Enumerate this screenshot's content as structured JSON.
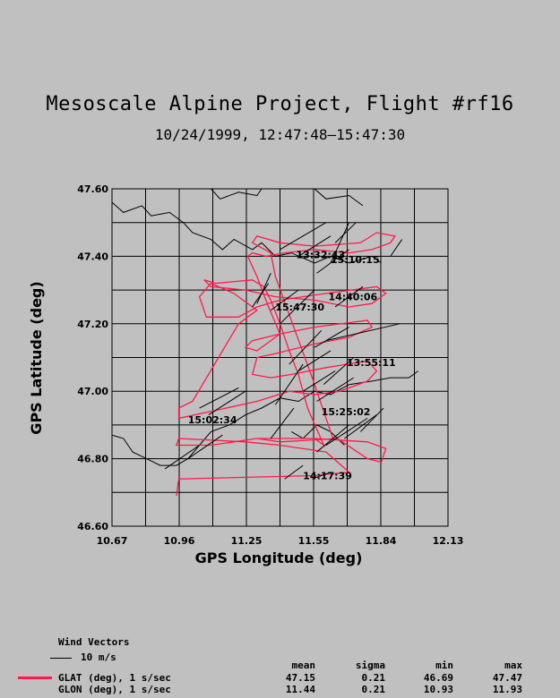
{
  "header": {
    "title": "Mesoscale Alpine Project, Flight #rf16",
    "subtitle": "10/24/1999, 12:47:48–15:47:30"
  },
  "chart_data": {
    "type": "line",
    "xlabel": "GPS Longitude (deg)",
    "ylabel": "GPS Latitude (deg)",
    "xlim": [
      10.67,
      12.13
    ],
    "ylim": [
      46.6,
      47.6
    ],
    "x_ticks": [
      "10.67",
      "10.96",
      "11.25",
      "11.55",
      "11.84",
      "12.13"
    ],
    "y_ticks": [
      "46.60",
      "46.80",
      "47.00",
      "47.20",
      "47.40",
      "47.60"
    ],
    "grid": true,
    "track_color": "#ff1a4a",
    "track": [
      [
        10.95,
        46.69
      ],
      [
        10.96,
        46.74
      ],
      [
        11.55,
        46.75
      ],
      [
        11.7,
        46.76
      ],
      [
        11.6,
        46.82
      ],
      [
        11.4,
        46.84
      ],
      [
        11.25,
        46.85
      ],
      [
        10.96,
        46.86
      ],
      [
        10.95,
        46.84
      ],
      [
        11.1,
        46.84
      ],
      [
        11.3,
        46.86
      ],
      [
        11.55,
        46.86
      ],
      [
        11.78,
        46.85
      ],
      [
        11.86,
        46.83
      ],
      [
        11.84,
        46.79
      ],
      [
        11.78,
        46.8
      ],
      [
        11.65,
        46.86
      ],
      [
        11.4,
        46.85
      ],
      [
        11.3,
        46.86
      ],
      [
        11.55,
        46.86
      ],
      [
        11.59,
        46.84
      ],
      [
        11.52,
        46.95
      ],
      [
        11.48,
        47.05
      ],
      [
        11.44,
        47.12
      ],
      [
        11.4,
        47.2
      ],
      [
        11.36,
        47.27
      ],
      [
        11.33,
        47.31
      ],
      [
        11.28,
        47.33
      ],
      [
        11.12,
        47.32
      ],
      [
        11.07,
        47.33
      ],
      [
        11.1,
        47.31
      ],
      [
        11.25,
        47.3
      ],
      [
        11.38,
        47.28
      ],
      [
        11.55,
        47.27
      ],
      [
        11.7,
        47.25
      ],
      [
        11.8,
        47.26
      ],
      [
        11.86,
        47.29
      ],
      [
        11.82,
        47.31
      ],
      [
        11.6,
        47.29
      ],
      [
        11.4,
        47.27
      ],
      [
        11.3,
        47.25
      ],
      [
        11.22,
        47.22
      ],
      [
        11.08,
        47.22
      ],
      [
        11.05,
        47.28
      ],
      [
        11.1,
        47.32
      ],
      [
        11.2,
        47.29
      ],
      [
        11.3,
        47.24
      ],
      [
        11.22,
        47.2
      ],
      [
        11.02,
        46.97
      ],
      [
        10.96,
        46.95
      ],
      [
        10.96,
        46.92
      ],
      [
        11.1,
        46.94
      ],
      [
        11.3,
        46.97
      ],
      [
        11.44,
        47.0
      ],
      [
        11.55,
        46.99
      ],
      [
        11.66,
        47.0
      ],
      [
        11.78,
        47.03
      ],
      [
        11.82,
        47.06
      ],
      [
        11.78,
        47.09
      ],
      [
        11.6,
        47.07
      ],
      [
        11.45,
        47.05
      ],
      [
        11.36,
        47.04
      ],
      [
        11.28,
        47.05
      ],
      [
        11.3,
        47.1
      ],
      [
        11.37,
        47.11
      ],
      [
        11.55,
        47.14
      ],
      [
        11.7,
        47.16
      ],
      [
        11.8,
        47.19
      ],
      [
        11.78,
        47.21
      ],
      [
        11.55,
        47.19
      ],
      [
        11.4,
        47.17
      ],
      [
        11.28,
        47.15
      ],
      [
        11.25,
        47.13
      ],
      [
        11.3,
        47.12
      ],
      [
        11.4,
        47.17
      ],
      [
        11.35,
        47.25
      ],
      [
        11.3,
        47.34
      ],
      [
        11.26,
        47.4
      ],
      [
        11.28,
        47.41
      ],
      [
        11.34,
        47.4
      ],
      [
        11.42,
        47.41
      ],
      [
        11.55,
        47.42
      ],
      [
        11.7,
        47.41
      ],
      [
        11.8,
        47.42
      ],
      [
        11.88,
        47.44
      ],
      [
        11.9,
        47.46
      ],
      [
        11.82,
        47.47
      ],
      [
        11.75,
        47.44
      ],
      [
        11.55,
        47.43
      ],
      [
        11.4,
        47.44
      ],
      [
        11.3,
        47.46
      ],
      [
        11.28,
        47.44
      ],
      [
        11.36,
        47.41
      ],
      [
        11.38,
        47.34
      ],
      [
        11.46,
        47.19
      ],
      [
        11.54,
        47.04
      ],
      [
        11.6,
        46.92
      ],
      [
        11.63,
        46.86
      ]
    ],
    "wind_vectors": [
      [
        11.09,
        46.93,
        11.25,
        47.0
      ],
      [
        11.05,
        46.95,
        11.22,
        47.01
      ],
      [
        11.0,
        46.8,
        11.15,
        46.87
      ],
      [
        10.9,
        46.77,
        11.05,
        46.84
      ],
      [
        11.36,
        46.86,
        11.46,
        46.95
      ],
      [
        11.38,
        46.96,
        11.5,
        47.08
      ],
      [
        11.5,
        47.0,
        11.64,
        47.06
      ],
      [
        11.56,
        46.97,
        11.72,
        47.04
      ],
      [
        11.59,
        47.02,
        11.72,
        47.1
      ],
      [
        11.48,
        47.06,
        11.62,
        47.12
      ],
      [
        11.55,
        47.13,
        11.7,
        47.19
      ],
      [
        11.6,
        47.15,
        11.92,
        47.2
      ],
      [
        11.44,
        47.08,
        11.58,
        47.18
      ],
      [
        11.36,
        47.24,
        11.48,
        47.3
      ],
      [
        11.4,
        47.2,
        11.55,
        47.3
      ],
      [
        11.28,
        47.25,
        11.35,
        47.32
      ],
      [
        11.3,
        47.26,
        11.36,
        47.35
      ],
      [
        11.56,
        47.35,
        11.7,
        47.42
      ],
      [
        11.48,
        47.4,
        11.62,
        47.46
      ],
      [
        11.4,
        47.42,
        11.6,
        47.5
      ],
      [
        11.64,
        47.44,
        11.73,
        47.5
      ],
      [
        11.62,
        47.38,
        11.7,
        47.5
      ],
      [
        11.64,
        47.25,
        11.76,
        47.31
      ],
      [
        11.68,
        46.86,
        11.82,
        46.93
      ],
      [
        11.6,
        46.84,
        11.78,
        46.92
      ],
      [
        11.56,
        46.82,
        11.7,
        46.9
      ],
      [
        11.75,
        46.88,
        11.85,
        46.95
      ],
      [
        11.42,
        46.74,
        11.5,
        46.78
      ],
      [
        11.54,
        46.74,
        11.62,
        46.76
      ],
      [
        11.88,
        47.4,
        11.93,
        47.45
      ]
    ],
    "time_labels": [
      {
        "text": "13:32:43",
        "x": 11.47,
        "y": 47.405
      },
      {
        "text": "15:10:15",
        "x": 11.62,
        "y": 47.39
      },
      {
        "text": "14:40:06",
        "x": 11.61,
        "y": 47.28
      },
      {
        "text": "15:47:30",
        "x": 11.38,
        "y": 47.25
      },
      {
        "text": "13:55:11",
        "x": 11.69,
        "y": 47.085
      },
      {
        "text": "15:25:02",
        "x": 11.58,
        "y": 46.94
      },
      {
        "text": "15:02:34",
        "x": 11.0,
        "y": 46.915
      },
      {
        "text": "14:17:39",
        "x": 11.5,
        "y": 46.75
      }
    ],
    "coastlines": [
      [
        [
          10.67,
          47.56
        ],
        [
          10.72,
          47.53
        ],
        [
          10.8,
          47.55
        ],
        [
          10.84,
          47.52
        ],
        [
          10.92,
          47.53
        ],
        [
          10.98,
          47.5
        ],
        [
          11.02,
          47.47
        ],
        [
          11.1,
          47.45
        ],
        [
          11.15,
          47.42
        ],
        [
          11.2,
          47.45
        ],
        [
          11.28,
          47.42
        ],
        [
          11.32,
          47.44
        ],
        [
          11.38,
          47.4
        ],
        [
          11.45,
          47.41
        ],
        [
          11.55,
          47.38
        ],
        [
          11.62,
          47.4
        ],
        [
          11.7,
          47.38
        ],
        [
          11.8,
          47.4
        ],
        [
          11.84,
          47.38
        ]
      ],
      [
        [
          11.1,
          47.6
        ],
        [
          11.14,
          47.57
        ],
        [
          11.22,
          47.59
        ],
        [
          11.3,
          47.58
        ],
        [
          11.32,
          47.6
        ]
      ],
      [
        [
          11.55,
          47.6
        ],
        [
          11.6,
          47.57
        ],
        [
          11.7,
          47.58
        ],
        [
          11.76,
          47.55
        ]
      ],
      [
        [
          10.67,
          46.87
        ],
        [
          10.72,
          46.86
        ],
        [
          10.76,
          46.82
        ],
        [
          10.82,
          46.8
        ],
        [
          10.88,
          46.78
        ],
        [
          10.95,
          46.78
        ],
        [
          11.0,
          46.8
        ],
        [
          11.05,
          46.84
        ],
        [
          11.1,
          46.88
        ],
        [
          11.18,
          46.9
        ],
        [
          11.25,
          46.93
        ],
        [
          11.32,
          46.95
        ],
        [
          11.4,
          46.98
        ],
        [
          11.48,
          46.97
        ],
        [
          11.55,
          47.0
        ],
        [
          11.62,
          46.99
        ],
        [
          11.7,
          47.02
        ],
        [
          11.8,
          47.03
        ],
        [
          11.88,
          47.04
        ],
        [
          11.96,
          47.04
        ],
        [
          12.0,
          47.06
        ]
      ],
      [
        [
          11.45,
          46.88
        ],
        [
          11.5,
          46.86
        ],
        [
          11.56,
          46.9
        ],
        [
          11.62,
          46.88
        ],
        [
          11.68,
          46.84
        ]
      ]
    ]
  },
  "footer": {
    "wind_vectors_title": "Wind Vectors",
    "wind_scale_label": "10 m/s",
    "stat_headers": [
      "mean",
      "sigma",
      "min",
      "max"
    ],
    "rows": [
      {
        "label": "GLAT (deg), 1 s/sec",
        "mean": "47.15",
        "sigma": "0.21",
        "min": "46.69",
        "max": "47.47",
        "color": "#ff1a4a"
      },
      {
        "label": "GLON (deg), 1 s/sec",
        "mean": "11.44",
        "sigma": "0.21",
        "min": "10.93",
        "max": "11.93"
      }
    ]
  }
}
